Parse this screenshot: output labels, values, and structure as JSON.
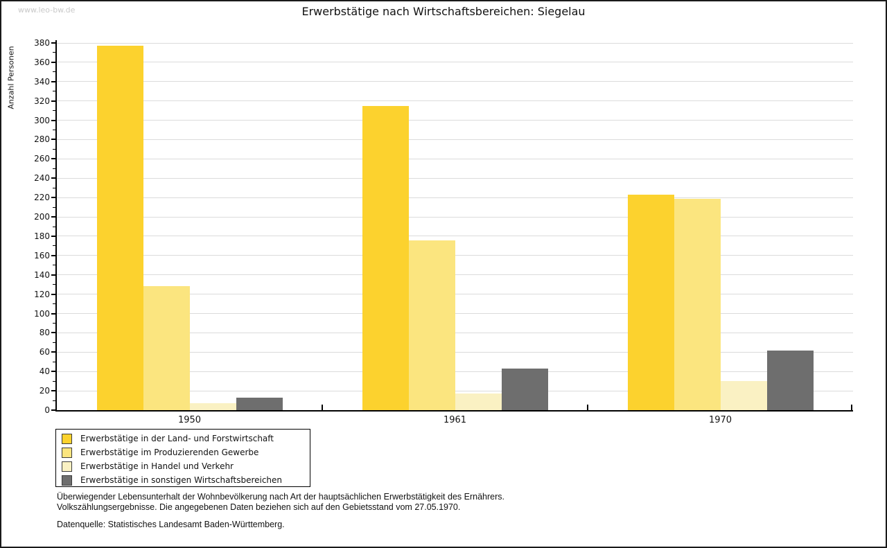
{
  "watermark": "www.leo-bw.de",
  "title": "Erwerbstätige nach Wirtschaftsbereichen: Siegelau",
  "chart_data": {
    "type": "bar",
    "title": "Erwerbstätige nach Wirtschaftsbereichen: Siegelau",
    "ylabel": "Anzahl Personen",
    "xlabel": "",
    "categories": [
      "1950",
      "1961",
      "1970"
    ],
    "series": [
      {
        "name": "Erwerbstätige in der Land- und Forstwirtschaft",
        "color": "#FCD22E",
        "values": [
          377,
          315,
          223
        ]
      },
      {
        "name": "Erwerbstätige im Produzierenden Gewerbe",
        "color": "#FBE57F",
        "values": [
          128,
          176,
          219
        ]
      },
      {
        "name": "Erwerbstätige in Handel und Verkehr",
        "color": "#FAF1C3",
        "values": [
          7,
          17,
          30
        ]
      },
      {
        "name": "Erwerbstätige in sonstigen Wirtschaftsbereichen",
        "color": "#6E6E6E",
        "values": [
          13,
          43,
          62
        ]
      }
    ],
    "ylim": [
      0,
      380
    ],
    "ytick_step": 20,
    "ytick_labels": [
      "0",
      "20",
      "40",
      "60",
      "80",
      "100",
      "120",
      "140",
      "160",
      "180",
      "200",
      "220",
      "240",
      "260",
      "280",
      "300",
      "320",
      "340",
      "360",
      "380"
    ],
    "grid": true,
    "grid_color": "#DBDBDB",
    "axis_color": "#000000",
    "legend_border_color": "#000000",
    "swatch_border_color": "#3C3C3C",
    "legend_position": "bottom-left"
  },
  "footer": {
    "line1": "Überwiegender Lebensunterhalt der Wohnbevölkerung nach Art der hauptsächlichen Erwerbstätigkeit des Ernährers.",
    "line2": "Volkszählungsergebnisse. Die angegebenen Daten beziehen sich auf den Gebietsstand vom 27.05.1970.",
    "source": "Datenquelle: Statistisches Landesamt Baden-Württemberg."
  }
}
